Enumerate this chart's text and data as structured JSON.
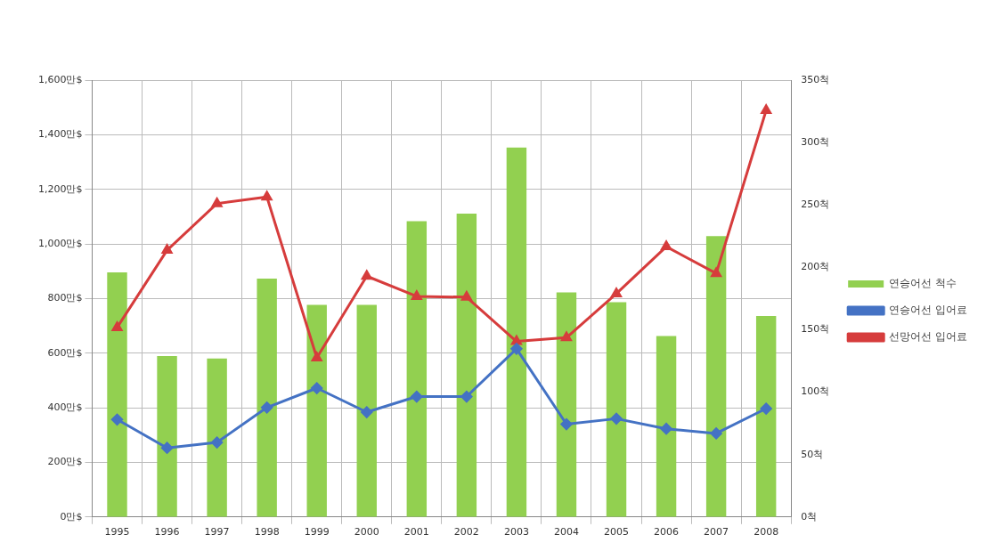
{
  "chart_data": {
    "type": "bar",
    "categories": [
      "1995",
      "1996",
      "1997",
      "1998",
      "1999",
      "2000",
      "2001",
      "2002",
      "2003",
      "2004",
      "2005",
      "2006",
      "2007",
      "2008"
    ],
    "series": [
      {
        "name": "연승어선 척수",
        "axis": "y2",
        "color": "#92d050",
        "values": [
          196,
          129,
          127,
          191,
          170,
          170,
          237,
          243,
          296,
          180,
          172,
          145,
          225,
          161
        ]
      },
      {
        "name": "연승어선 입어료",
        "type": "line",
        "color": "#4472c4",
        "marker": "diamond",
        "values": [
          357,
          253,
          273,
          401,
          472,
          384,
          441,
          441,
          616,
          340,
          360,
          323,
          306,
          397
        ]
      },
      {
        "name": "선망어선 입어료",
        "type": "line",
        "color": "#d63c3c",
        "marker": "triangle",
        "values": [
          694,
          977,
          1148,
          1172,
          583,
          882,
          808,
          805,
          643,
          657,
          818,
          990,
          892,
          1489
        ]
      }
    ],
    "ylim": [
      0,
      1600
    ],
    "yticks": [
      {
        "value": 0,
        "label": "0만$"
      },
      {
        "value": 200,
        "label": "200만$"
      },
      {
        "value": 400,
        "label": "400만$"
      },
      {
        "value": 600,
        "label": "600만$"
      },
      {
        "value": 800,
        "label": "800만$"
      },
      {
        "value": 1000,
        "label": "1,000만$"
      },
      {
        "value": 1200,
        "label": "1,200만$"
      },
      {
        "value": 1400,
        "label": "1,400만$"
      },
      {
        "value": 1600,
        "label": "1,600만$"
      }
    ],
    "y2lim": [
      0,
      350
    ],
    "y2ticks": [
      {
        "value": 0,
        "label": "0척"
      },
      {
        "value": 50,
        "label": "50척"
      },
      {
        "value": 100,
        "label": "100척"
      },
      {
        "value": 150,
        "label": "150척"
      },
      {
        "value": 200,
        "label": "200척"
      },
      {
        "value": 250,
        "label": "250척"
      },
      {
        "value": 300,
        "label": "300척"
      },
      {
        "value": 350,
        "label": "350척"
      }
    ],
    "grid": true,
    "legend": "right"
  }
}
